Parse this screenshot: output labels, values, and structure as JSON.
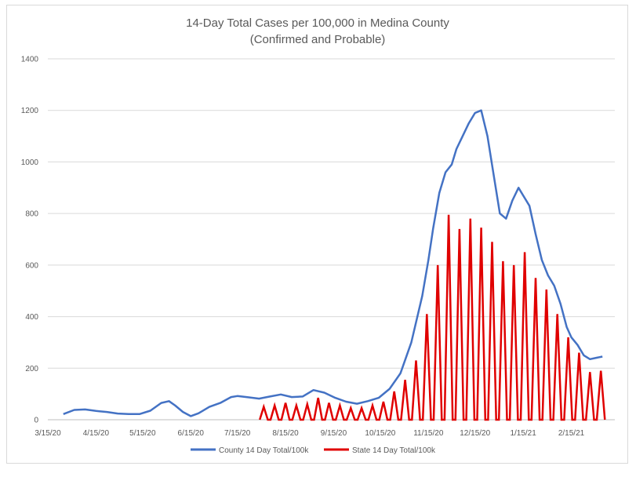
{
  "chart_data": {
    "type": "line",
    "title_lines": [
      "14-Day Total Cases per 100,000 in Medina County",
      "(Confirmed and Probable)"
    ],
    "xlabel": "",
    "ylabel": "",
    "ylim": [
      0,
      1400
    ],
    "yticks": [
      0,
      200,
      400,
      600,
      800,
      1000,
      1200,
      1400
    ],
    "xticks": [
      "3/15/20",
      "4/15/20",
      "5/15/20",
      "6/15/20",
      "7/15/20",
      "8/15/20",
      "9/15/20",
      "10/15/20",
      "11/15/20",
      "12/15/20",
      "1/15/21",
      "2/15/21"
    ],
    "grid": "horizontal",
    "legend_position": "bottom",
    "colors": {
      "county": "#4472c4",
      "state": "#e00000",
      "grid": "#d9d9d9",
      "axis": "#bfbfbf"
    },
    "series": [
      {
        "name": "County 14 Day Total/100k",
        "x": [
          "3/25/20",
          "4/1/20",
          "4/8/20",
          "4/15/20",
          "4/22/20",
          "4/29/20",
          "5/6/20",
          "5/13/20",
          "5/20/20",
          "5/27/20",
          "6/1/20",
          "6/5/20",
          "6/10/20",
          "6/15/20",
          "6/20/20",
          "6/27/20",
          "7/4/20",
          "7/11/20",
          "7/15/20",
          "7/22/20",
          "7/29/20",
          "8/5/20",
          "8/12/20",
          "8/19/20",
          "8/26/20",
          "9/2/20",
          "9/9/20",
          "9/16/20",
          "9/23/20",
          "9/30/20",
          "10/7/20",
          "10/14/20",
          "10/21/20",
          "10/28/20",
          "11/4/20",
          "11/11/20",
          "11/15/20",
          "11/18/20",
          "11/22/20",
          "11/26/20",
          "11/30/20",
          "12/3/20",
          "12/7/20",
          "12/11/20",
          "12/15/20",
          "12/19/20",
          "12/23/20",
          "12/27/20",
          "12/31/20",
          "1/4/21",
          "1/8/21",
          "1/12/21",
          "1/15/21",
          "1/19/21",
          "1/23/21",
          "1/27/21",
          "1/31/21",
          "2/4/21",
          "2/8/21",
          "2/12/21",
          "2/15/21",
          "2/19/21",
          "2/23/21",
          "2/27/21",
          "3/3/21",
          "3/7/21"
        ],
        "values": [
          22,
          38,
          40,
          34,
          30,
          24,
          22,
          22,
          35,
          65,
          72,
          55,
          30,
          14,
          25,
          50,
          65,
          88,
          92,
          87,
          82,
          90,
          98,
          88,
          90,
          115,
          105,
          85,
          70,
          62,
          72,
          85,
          120,
          180,
          300,
          480,
          620,
          740,
          880,
          960,
          990,
          1050,
          1100,
          1150,
          1190,
          1200,
          1100,
          950,
          800,
          780,
          850,
          900,
          870,
          830,
          720,
          620,
          560,
          520,
          450,
          360,
          320,
          290,
          250,
          235,
          240,
          245
        ]
      },
      {
        "name": "State 14 Day Total/100k",
        "x": [
          "8/1/20",
          "8/8/20",
          "8/15/20",
          "8/22/20",
          "8/29/20",
          "9/5/20",
          "9/12/20",
          "9/19/20",
          "9/26/20",
          "10/3/20",
          "10/10/20",
          "10/17/20",
          "10/24/20",
          "10/31/20",
          "11/7/20",
          "11/14/20",
          "11/21/20",
          "11/28/20",
          "12/5/20",
          "12/12/20",
          "12/19/20",
          "12/26/20",
          "1/2/21",
          "1/9/21",
          "1/16/21",
          "1/23/21",
          "1/30/21",
          "2/6/21",
          "2/13/21",
          "2/20/21",
          "2/27/21",
          "3/6/21"
        ],
        "values": [
          50,
          55,
          65,
          55,
          60,
          85,
          65,
          55,
          45,
          45,
          55,
          70,
          110,
          155,
          230,
          410,
          600,
          795,
          740,
          780,
          745,
          690,
          615,
          600,
          650,
          550,
          505,
          410,
          320,
          260,
          185,
          190
        ]
      }
    ]
  }
}
